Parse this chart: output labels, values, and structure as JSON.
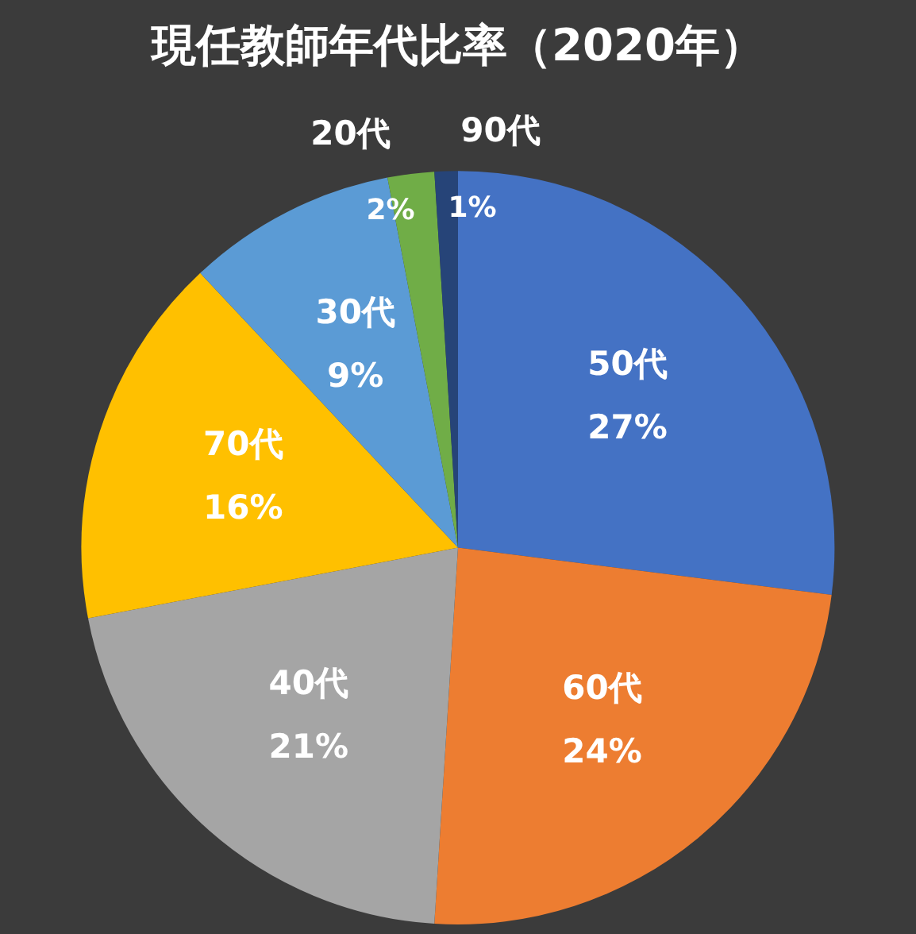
{
  "chart_data": {
    "type": "pie",
    "title": "現任教師年代比率（2020年）",
    "categories": [
      "50代",
      "60代",
      "40代",
      "70代",
      "30代",
      "20代",
      "90代"
    ],
    "values": [
      27,
      24,
      21,
      16,
      9,
      2,
      1
    ],
    "colors": [
      "#4472c4",
      "#ed7d31",
      "#a5a5a5",
      "#ffc000",
      "#5b9bd5",
      "#70ad47",
      "#264478"
    ],
    "value_labels": [
      "27%",
      "24%",
      "21%",
      "16%",
      "9%",
      "2%",
      "1%"
    ],
    "legend": false
  }
}
